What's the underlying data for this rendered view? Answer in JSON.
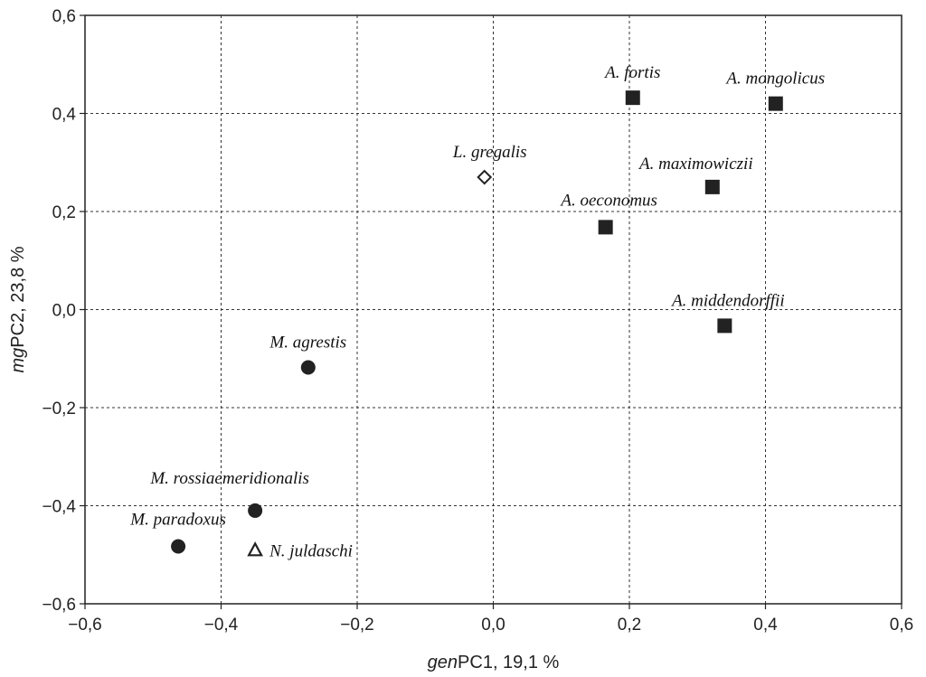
{
  "chart_data": {
    "type": "scatter",
    "xlabel_italic": "gen",
    "xlabel_rest": "PC1, 19,1 %",
    "ylabel_italic": "mg",
    "ylabel_rest": "PC2, 23,8 %",
    "xlim": [
      -0.6,
      0.6
    ],
    "ylim": [
      -0.6,
      0.6
    ],
    "x_ticks": [
      -0.6,
      -0.4,
      -0.2,
      0.0,
      0.2,
      0.4,
      0.6
    ],
    "y_ticks": [
      -0.6,
      -0.4,
      -0.2,
      0.0,
      0.2,
      0.4,
      0.6
    ],
    "x_tick_labels": [
      "−0,6",
      "−0,4",
      "−0,2",
      "0,0",
      "0,2",
      "0,4",
      "0,6"
    ],
    "y_tick_labels": [
      "−0,6",
      "−0,4",
      "−0,2",
      "0,0",
      "0,2",
      "0,4",
      "0,6"
    ],
    "grid": true,
    "points": [
      {
        "label": "A. fortis",
        "x": 0.205,
        "y": 0.432,
        "marker": "square-filled"
      },
      {
        "label": "A. mongolicus",
        "x": 0.415,
        "y": 0.42,
        "marker": "square-filled"
      },
      {
        "label": "L. gregalis",
        "x": -0.013,
        "y": 0.27,
        "marker": "diamond-open"
      },
      {
        "label": "A. maximowiczii",
        "x": 0.322,
        "y": 0.25,
        "marker": "square-filled"
      },
      {
        "label": "A. oeconomus",
        "x": 0.165,
        "y": 0.168,
        "marker": "square-filled"
      },
      {
        "label": "A. middendorffii",
        "x": 0.34,
        "y": -0.033,
        "marker": "square-filled"
      },
      {
        "label": "M. agrestis",
        "x": -0.272,
        "y": -0.118,
        "marker": "circle-filled"
      },
      {
        "label": "M. rossiaemeridionalis",
        "x": -0.35,
        "y": -0.41,
        "marker": "circle-filled"
      },
      {
        "label": "M. paradoxus",
        "x": -0.463,
        "y": -0.483,
        "marker": "circle-filled"
      },
      {
        "label": "N. juldaschi",
        "x": -0.35,
        "y": -0.49,
        "marker": "triangle-open"
      }
    ],
    "colors": {
      "marker": "#222222",
      "grid": "#333333"
    }
  }
}
